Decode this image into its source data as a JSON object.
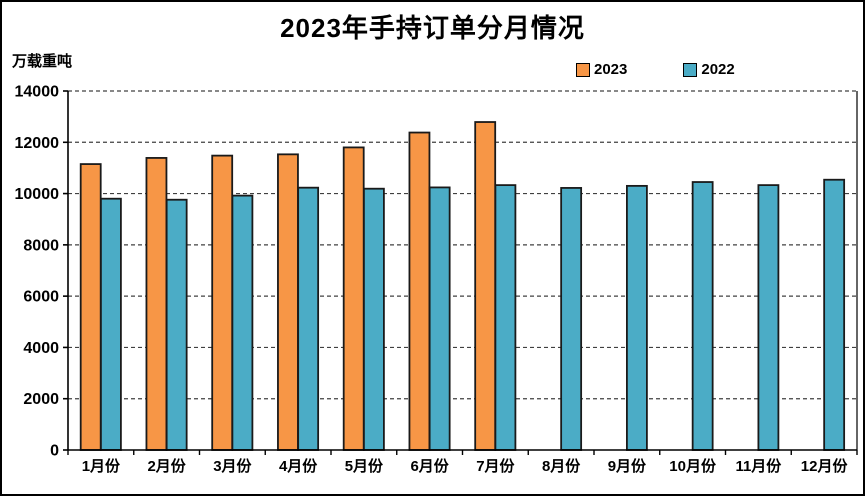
{
  "window": {
    "background": "#FFFFFF",
    "border_color": "#000000"
  },
  "chart_data": {
    "type": "bar",
    "title": "2023年手持订单分月情况",
    "ylabel": "万载重吨",
    "xlabel": "",
    "categories": [
      "1月份",
      "2月份",
      "3月份",
      "4月份",
      "5月份",
      "6月份",
      "7月份",
      "8月份",
      "9月份",
      "10月份",
      "11月份",
      "12月份"
    ],
    "series": [
      {
        "name": "2023",
        "color": "#F79646",
        "values": [
          11150,
          11390,
          11480,
          11530,
          11800,
          12380,
          12790,
          null,
          null,
          null,
          null,
          null
        ]
      },
      {
        "name": "2022",
        "color": "#4BACC6",
        "values": [
          9800,
          9760,
          9920,
          10230,
          10190,
          10240,
          10330,
          10220,
          10300,
          10450,
          10330,
          10540
        ]
      }
    ],
    "ylim": [
      0,
      14000
    ],
    "yticks": [
      0,
      2000,
      4000,
      6000,
      8000,
      10000,
      12000,
      14000
    ],
    "grid": "horizontal-dashed",
    "legend_position": "top-right",
    "bar_outline_color": "#1A1A1A",
    "gridline_color": "#404040",
    "axis_color": "#000000"
  }
}
